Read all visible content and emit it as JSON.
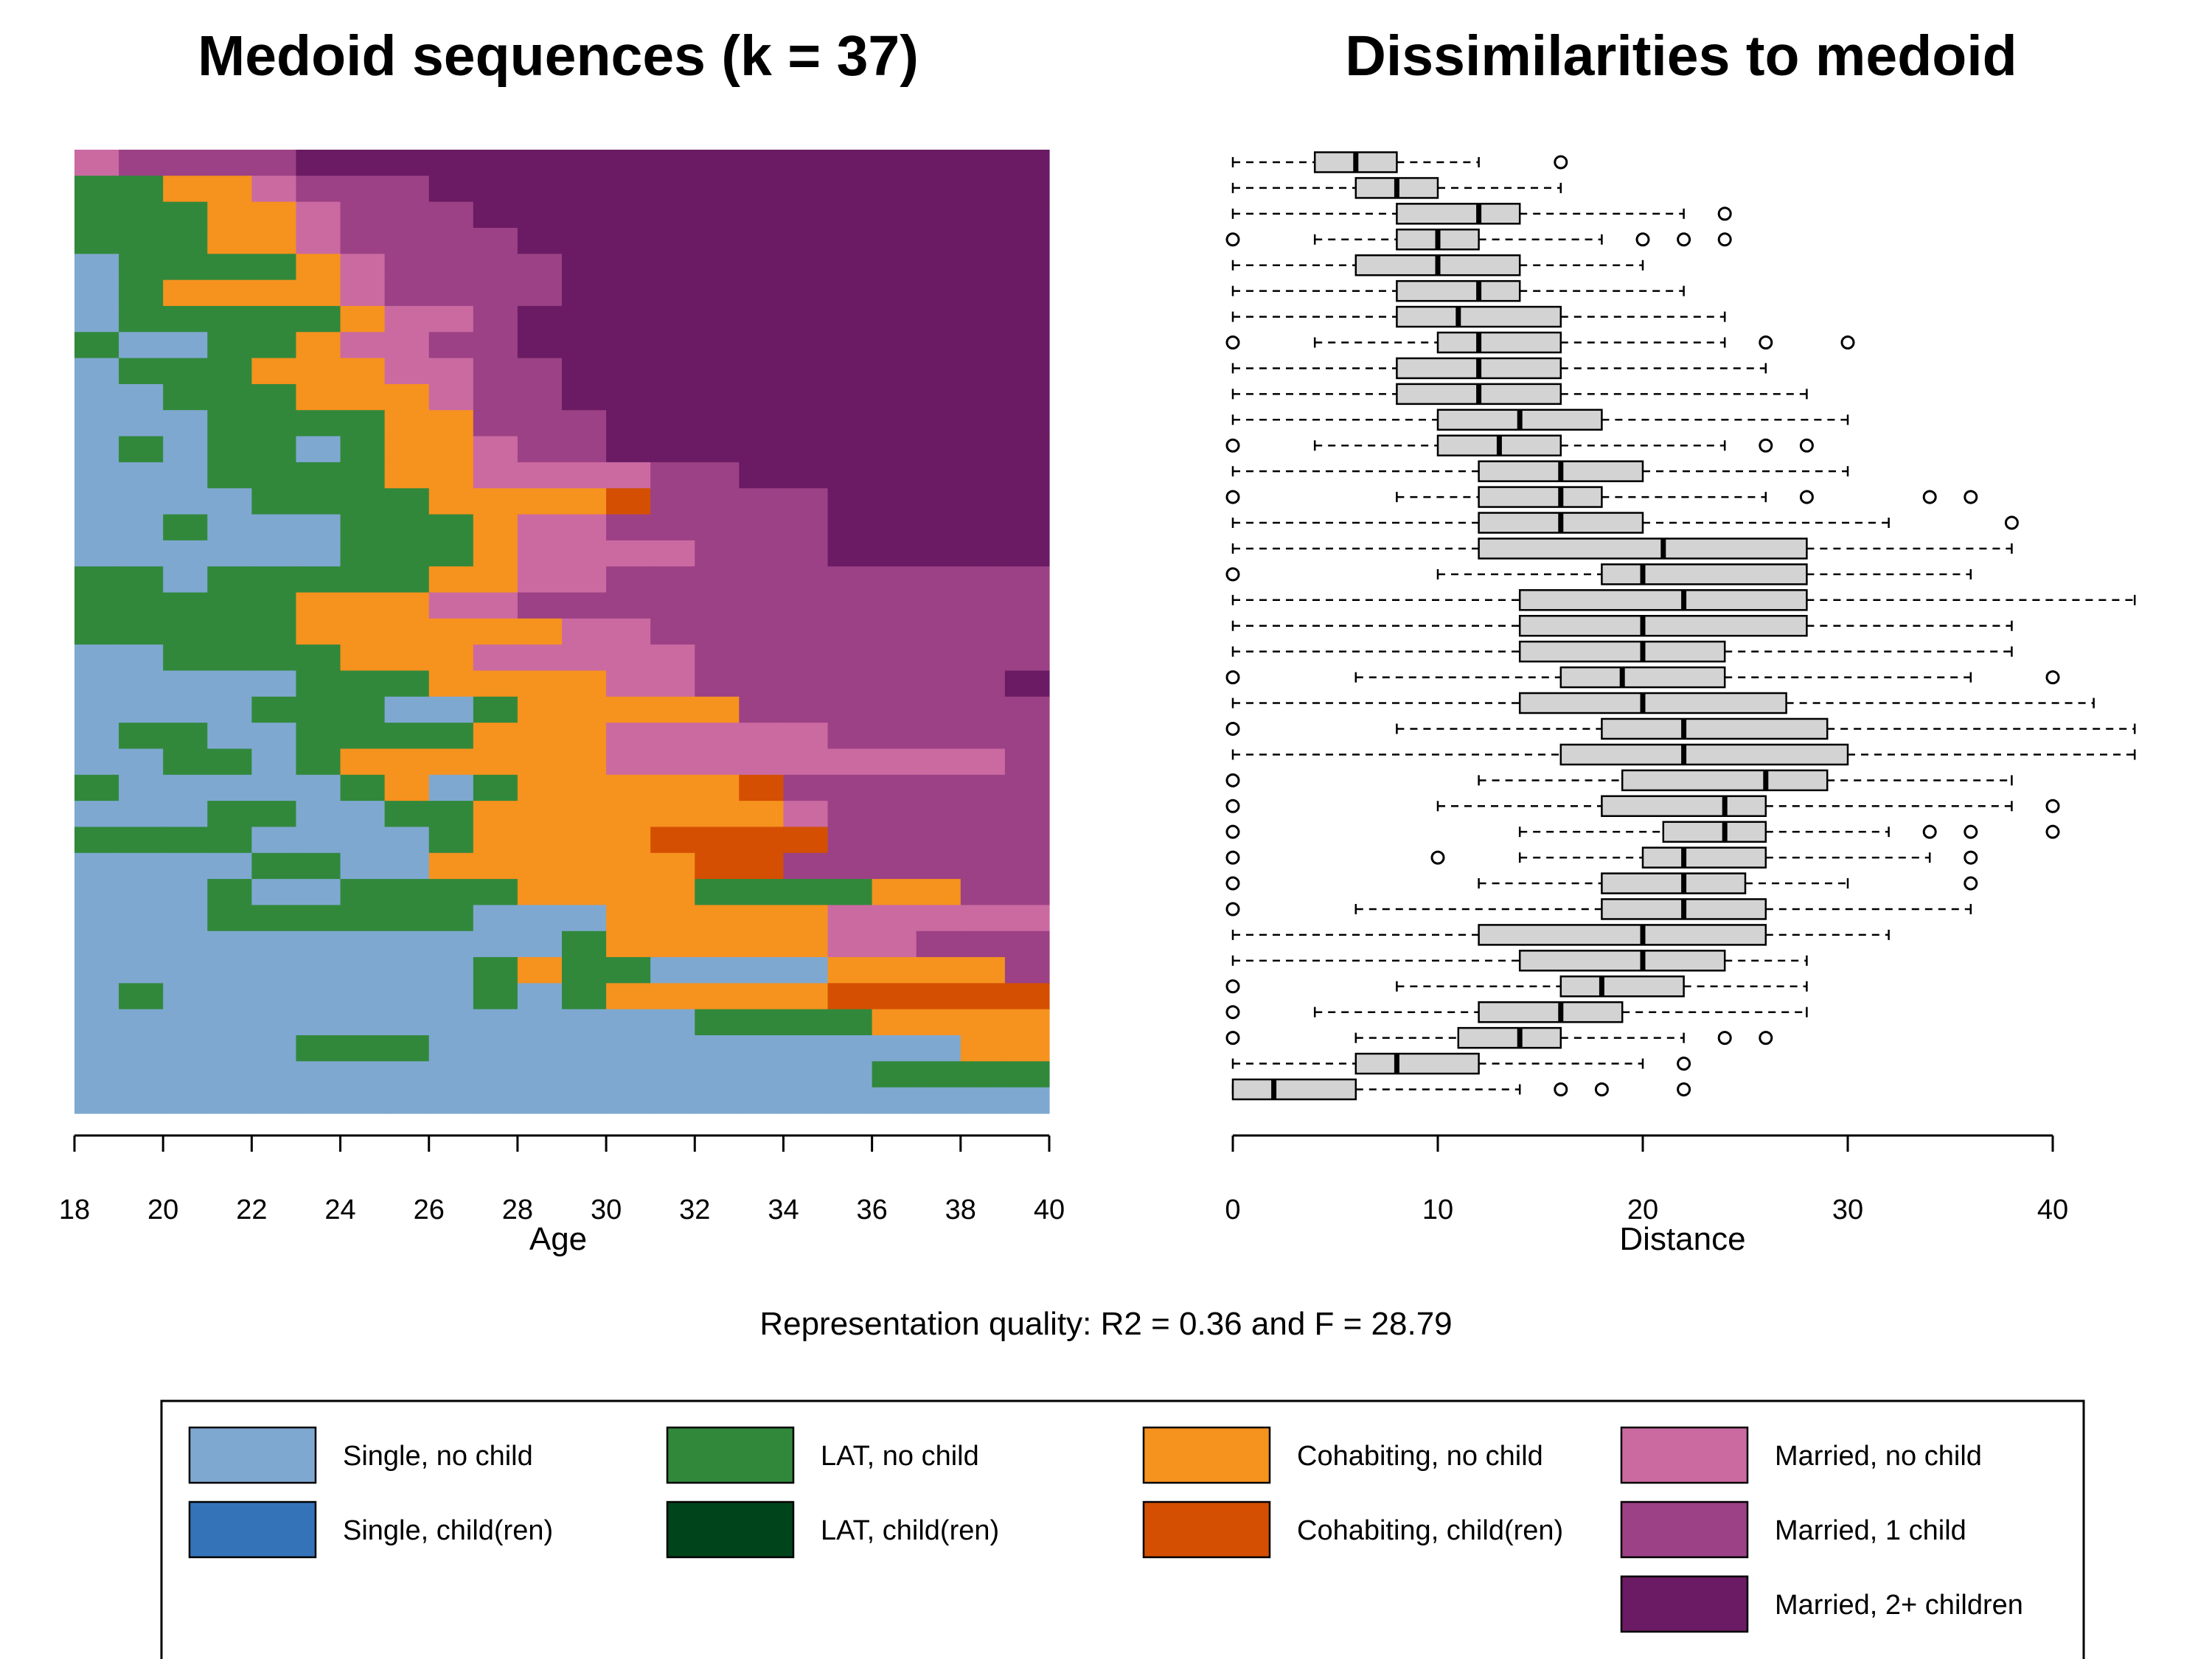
{
  "state_legend": [
    {
      "label": "Single, no child",
      "color": "#7fa8d1"
    },
    {
      "label": "LAT, no child",
      "color": "#31883b"
    },
    {
      "label": "Cohabiting, no child",
      "color": "#f6921e"
    },
    {
      "label": "Married, no child",
      "color": "#cb6aa1"
    },
    {
      "label": "Single, child(ren)",
      "color": "#3573b9"
    },
    {
      "label": "LAT, child(ren)",
      "color": "#00441b"
    },
    {
      "label": "Cohabiting, child(ren)",
      "color": "#d44f02"
    },
    {
      "label": "Married, 1 child",
      "color": "#9c4185"
    },
    {
      "label": "Married, 2+ children",
      "color": "#6a1b63"
    }
  ],
  "quality_text": "Representation quality: R2 = 0.36 and F = 28.79",
  "chart_data": [
    {
      "type": "heatmap",
      "title": "Medoid sequences (k = 37)",
      "xlabel": "Age",
      "ylabel": "",
      "xlim": [
        18,
        40
      ],
      "xticks": [
        18,
        20,
        22,
        24,
        26,
        28,
        30,
        32,
        34,
        36,
        38,
        40
      ],
      "state_codes": {
        "S": "Single, no child",
        "L": "LAT, no child",
        "C": "Cohabiting, no child",
        "M": "Married, no child",
        "K": "Cohabiting, child(ren)",
        "1": "Married, 1 child",
        "2": "Married, 2+ children"
      },
      "note_order": "rows listed top to bottom, each row gives the state at ages 18..39",
      "rows": [
        "M1111222222222222222222",
        "LLCCM111222222222222222",
        "LLLCCM111222222222222222",
        "LLLCCM1111222222222222",
        "SLLLLCM11112222222222222",
        "SLCCCCM11112222222222",
        "SLLLLLCMM1222222222222",
        "LSSLLCMM1122222222222",
        "SLLLCCCMM11222222222222",
        "SSLLLCCCM112222222222",
        "SSSLLLLCC11122222222222",
        "SLSLLSLCCM1122222222222",
        "SSSLLLLCCMMMM1122222222",
        "SSSSLLLLCCCCK1111222222",
        "SSLSSSLLLCMM11111222222",
        "SSSSSSLLLCMMMM111222222",
        "LLSLLLLLCCMM111111111112",
        "LLLLLCCCMM11111111111",
        "LLLLLCCCCCCMM11111111111",
        "SSLLLLCCCMMMMM11111111",
        "SSSSSLLLCCCCMM111111122",
        "SSSSLLLSSLCCCCC11111112",
        "SLLSSLLLLCCCMMMMM11111",
        "SSLLSLCCCCCCMMMMMMMMM11",
        "LSSSSSLCSLCCCCCK1111112",
        "SSSLLSSLLCCCCCCCM11111",
        "LLLLSSSSLCCCCKKKK11111",
        "SSSSLLSSCCCCCCKK111111",
        "SSSLSSLLLLCCCCLLLLCC1111",
        "SSSLLLLLLSSSCCCCCMMMMMM",
        "SSSSSSSSSSSLCCCCCMM11111",
        "SSSSSSSSSLCLLSSSSCCCC11",
        "SLSSSSSSSLSLCCCCCKKKKKK",
        "SSSSSSSSSSSSSSLLLLCCCCM",
        "SSSSSLLLSSSSSSSSSSSSCC",
        "SSSSSSSSSSSSSSSSSSLLLLL",
        "SSSSSSSSSSSSSSSSSSSSSSS"
      ]
    },
    {
      "type": "boxplot",
      "title": "Dissimilarities to medoid",
      "xlabel": "Distance",
      "ylabel": "",
      "xlim": [
        0,
        44
      ],
      "xticks": [
        0,
        10,
        20,
        30,
        40
      ],
      "note_fields": "each box: [lower whisker, Q1, median, Q3, upper whisker], outliers listed separately; order top to bottom",
      "boxes": [
        {
          "stats": [
            0,
            4,
            6,
            8,
            12
          ],
          "outliers": [
            16
          ]
        },
        {
          "stats": [
            0,
            6,
            8,
            10,
            16
          ],
          "outliers": []
        },
        {
          "stats": [
            0,
            8,
            12,
            14,
            22
          ],
          "outliers": [
            24
          ]
        },
        {
          "stats": [
            4,
            8,
            10,
            12,
            18
          ],
          "outliers": [
            0,
            20,
            22,
            24
          ]
        },
        {
          "stats": [
            0,
            6,
            10,
            14,
            20
          ],
          "outliers": []
        },
        {
          "stats": [
            0,
            8,
            12,
            14,
            22
          ],
          "outliers": []
        },
        {
          "stats": [
            0,
            8,
            11,
            16,
            24
          ],
          "outliers": []
        },
        {
          "stats": [
            4,
            10,
            12,
            16,
            24
          ],
          "outliers": [
            0,
            26,
            30
          ]
        },
        {
          "stats": [
            0,
            8,
            12,
            16,
            26
          ],
          "outliers": []
        },
        {
          "stats": [
            0,
            8,
            12,
            16,
            28
          ],
          "outliers": []
        },
        {
          "stats": [
            0,
            10,
            14,
            18,
            30
          ],
          "outliers": []
        },
        {
          "stats": [
            4,
            10,
            13,
            16,
            24
          ],
          "outliers": [
            0,
            26,
            28
          ]
        },
        {
          "stats": [
            0,
            12,
            16,
            20,
            30
          ],
          "outliers": []
        },
        {
          "stats": [
            8,
            12,
            16,
            18,
            26
          ],
          "outliers": [
            0,
            28,
            34,
            36
          ]
        },
        {
          "stats": [
            0,
            12,
            16,
            20,
            32
          ],
          "outliers": [
            38
          ]
        },
        {
          "stats": [
            0,
            12,
            21,
            28,
            38
          ],
          "outliers": []
        },
        {
          "stats": [
            10,
            18,
            20,
            28,
            36
          ],
          "outliers": [
            0
          ]
        },
        {
          "stats": [
            0,
            14,
            22,
            28,
            44
          ],
          "outliers": []
        },
        {
          "stats": [
            0,
            14,
            20,
            28,
            38
          ],
          "outliers": []
        },
        {
          "stats": [
            0,
            14,
            20,
            24,
            38
          ],
          "outliers": []
        },
        {
          "stats": [
            6,
            16,
            19,
            24,
            36
          ],
          "outliers": [
            0,
            40
          ]
        },
        {
          "stats": [
            0,
            14,
            20,
            27,
            42
          ],
          "outliers": []
        },
        {
          "stats": [
            8,
            18,
            22,
            29,
            44
          ],
          "outliers": [
            0
          ]
        },
        {
          "stats": [
            0,
            16,
            22,
            30,
            44
          ],
          "outliers": []
        },
        {
          "stats": [
            12,
            19,
            26,
            29,
            38
          ],
          "outliers": [
            0
          ]
        },
        {
          "stats": [
            10,
            18,
            24,
            26,
            38
          ],
          "outliers": [
            0,
            40
          ]
        },
        {
          "stats": [
            14,
            21,
            24,
            26,
            32
          ],
          "outliers": [
            0,
            34,
            36,
            40
          ]
        },
        {
          "stats": [
            14,
            20,
            22,
            26,
            34
          ],
          "outliers": [
            0,
            10,
            36
          ]
        },
        {
          "stats": [
            12,
            18,
            22,
            25,
            30
          ],
          "outliers": [
            0,
            36
          ]
        },
        {
          "stats": [
            6,
            18,
            22,
            26,
            36
          ],
          "outliers": [
            0
          ]
        },
        {
          "stats": [
            0,
            12,
            20,
            26,
            32
          ],
          "outliers": []
        },
        {
          "stats": [
            0,
            14,
            20,
            24,
            28
          ],
          "outliers": []
        },
        {
          "stats": [
            8,
            16,
            18,
            22,
            28
          ],
          "outliers": [
            0
          ]
        },
        {
          "stats": [
            4,
            12,
            16,
            19,
            28
          ],
          "outliers": [
            0
          ]
        },
        {
          "stats": [
            6,
            11,
            14,
            16,
            22
          ],
          "outliers": [
            0,
            24,
            26
          ]
        },
        {
          "stats": [
            0,
            6,
            8,
            12,
            20
          ],
          "outliers": [
            22
          ]
        },
        {
          "stats": [
            0,
            0,
            2,
            6,
            14
          ],
          "outliers": [
            16,
            18,
            22
          ]
        }
      ]
    }
  ]
}
